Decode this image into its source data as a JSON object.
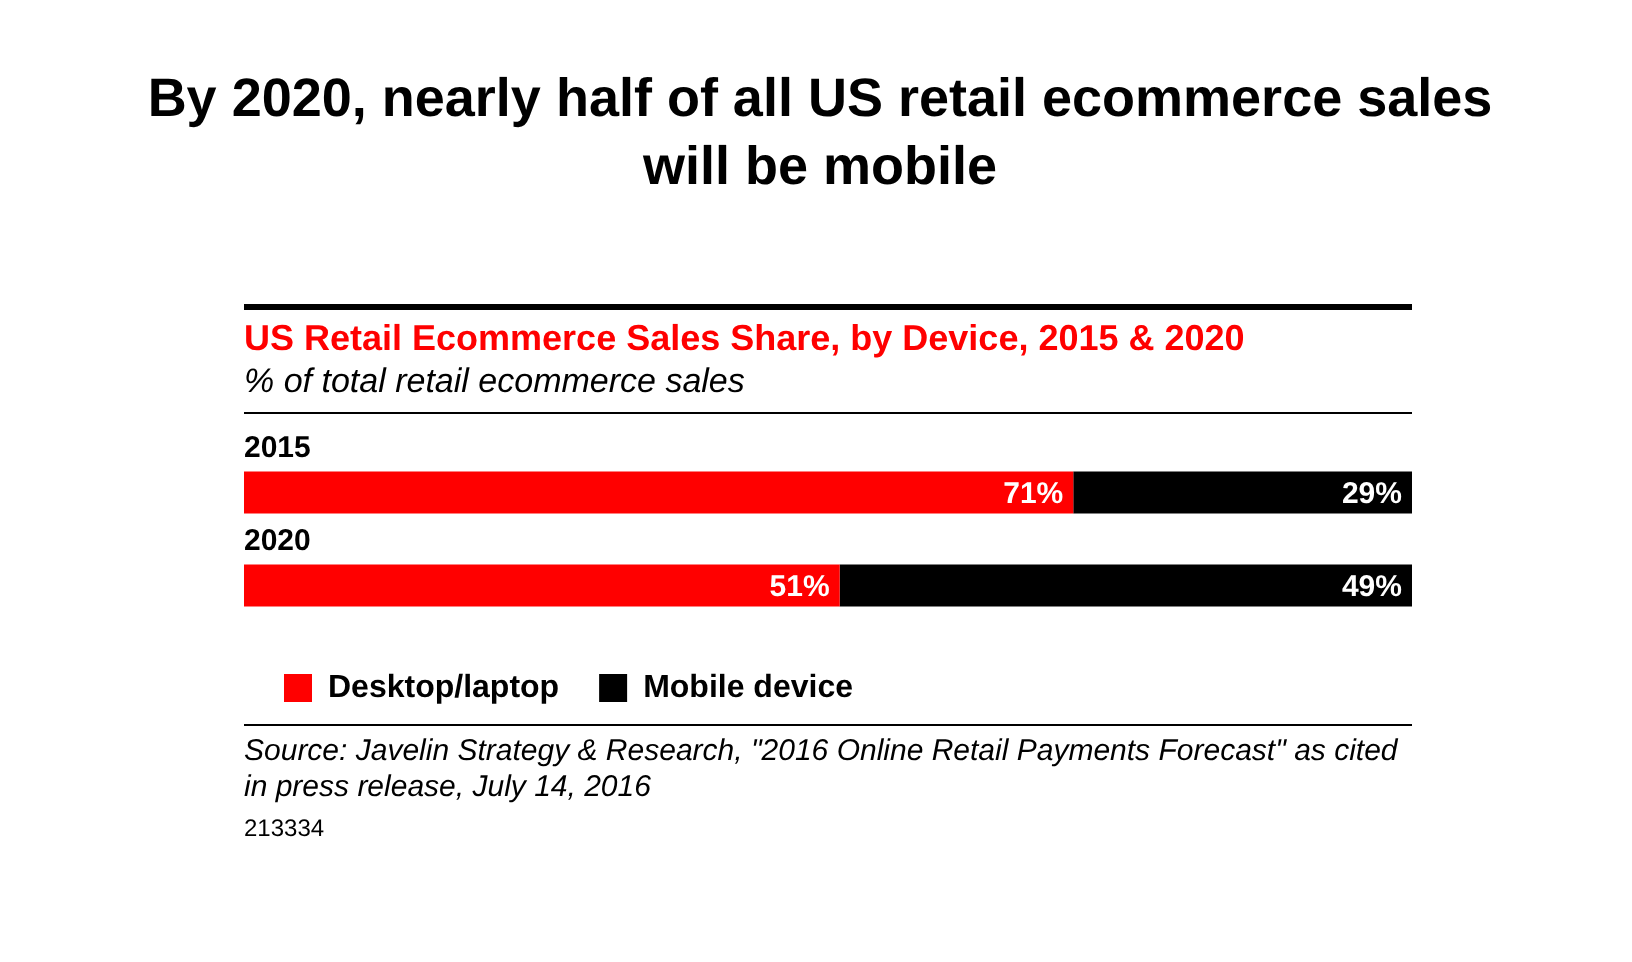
{
  "chart_data": {
    "type": "bar",
    "orientation": "horizontal",
    "stacked": true,
    "title": "By 2020, nearly half of all US retail ecommerce sales will be mobile",
    "subtitle": "US Retail Ecommerce Sales Share, by Device, 2015 & 2020",
    "categories": [
      "2015",
      "2020"
    ],
    "series": [
      {
        "name": "Desktop/laptop",
        "color": "#ff0000",
        "values": [
          71,
          51
        ],
        "value_labels": [
          "71%",
          "51%"
        ]
      },
      {
        "name": "Mobile device",
        "color": "#000000",
        "values": [
          29,
          49
        ],
        "value_labels": [
          "29%",
          "49%"
        ]
      }
    ],
    "tick_labels": "y",
    "legend": "bottom",
    "annotations": [
      "% of total retail ecommerce sales",
      "Source: Javelin Strategy & Research, \"2016 Online Retail Payments Forecast\" as cited in press release, July 14, 2016",
      "213334"
    ]
  }
}
